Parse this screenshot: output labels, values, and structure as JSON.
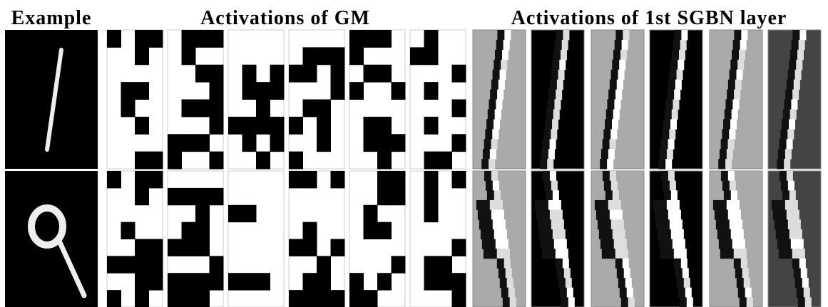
{
  "header": {
    "example": "Example",
    "gm": "Activations of GM",
    "sgbn": "Activations of 1st SGBN layer"
  }
}
